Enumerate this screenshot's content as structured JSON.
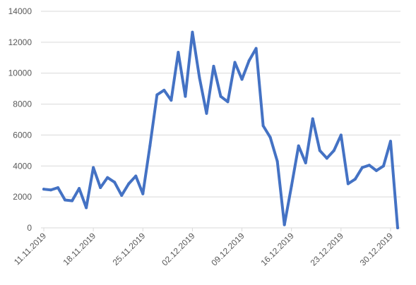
{
  "chart_data": {
    "type": "line",
    "title": "",
    "xlabel": "",
    "ylabel": "",
    "ylim": [
      0,
      14000
    ],
    "yticks": [
      "0",
      "2000",
      "4000",
      "6000",
      "8000",
      "10000",
      "12000",
      "14000"
    ],
    "xticks": [
      "11.11.2019",
      "18.11.2019",
      "25.11.2019",
      "02.12.2019",
      "09.12.2019",
      "16.12.2019",
      "23.12.2019",
      "30.12.2019"
    ],
    "grid": true,
    "legend": "none",
    "x": [
      "11.11.2019",
      "12.11.2019",
      "13.11.2019",
      "14.11.2019",
      "15.11.2019",
      "16.11.2019",
      "17.11.2019",
      "18.11.2019",
      "19.11.2019",
      "20.11.2019",
      "21.11.2019",
      "22.11.2019",
      "23.11.2019",
      "24.11.2019",
      "25.11.2019",
      "26.11.2019",
      "27.11.2019",
      "28.11.2019",
      "29.11.2019",
      "30.11.2019",
      "01.12.2019",
      "02.12.2019",
      "03.12.2019",
      "04.12.2019",
      "05.12.2019",
      "06.12.2019",
      "07.12.2019",
      "08.12.2019",
      "09.12.2019",
      "10.12.2019",
      "11.12.2019",
      "12.12.2019",
      "13.12.2019",
      "14.12.2019",
      "15.12.2019",
      "16.12.2019",
      "17.12.2019",
      "18.12.2019",
      "19.12.2019",
      "20.12.2019",
      "21.12.2019",
      "22.12.2019",
      "23.12.2019",
      "24.12.2019",
      "25.12.2019",
      "26.12.2019",
      "27.12.2019",
      "28.12.2019",
      "29.12.2019",
      "30.12.2019",
      "31.12.2019"
    ],
    "series": [
      {
        "color": "#4472c4",
        "values": [
          2500,
          2450,
          2600,
          1800,
          1750,
          2550,
          1300,
          3900,
          2600,
          3250,
          2950,
          2100,
          2850,
          3350,
          2200,
          5300,
          8600,
          8900,
          8250,
          11350,
          8500,
          12650,
          9700,
          7400,
          10450,
          8500,
          8150,
          10700,
          9600,
          10800,
          11600,
          6600,
          5850,
          4300,
          200,
          2700,
          5300,
          4200,
          7050,
          5000,
          4500,
          5000,
          6000,
          2850,
          3150,
          3900,
          4050,
          3700,
          4000,
          5600,
          0
        ]
      }
    ]
  }
}
